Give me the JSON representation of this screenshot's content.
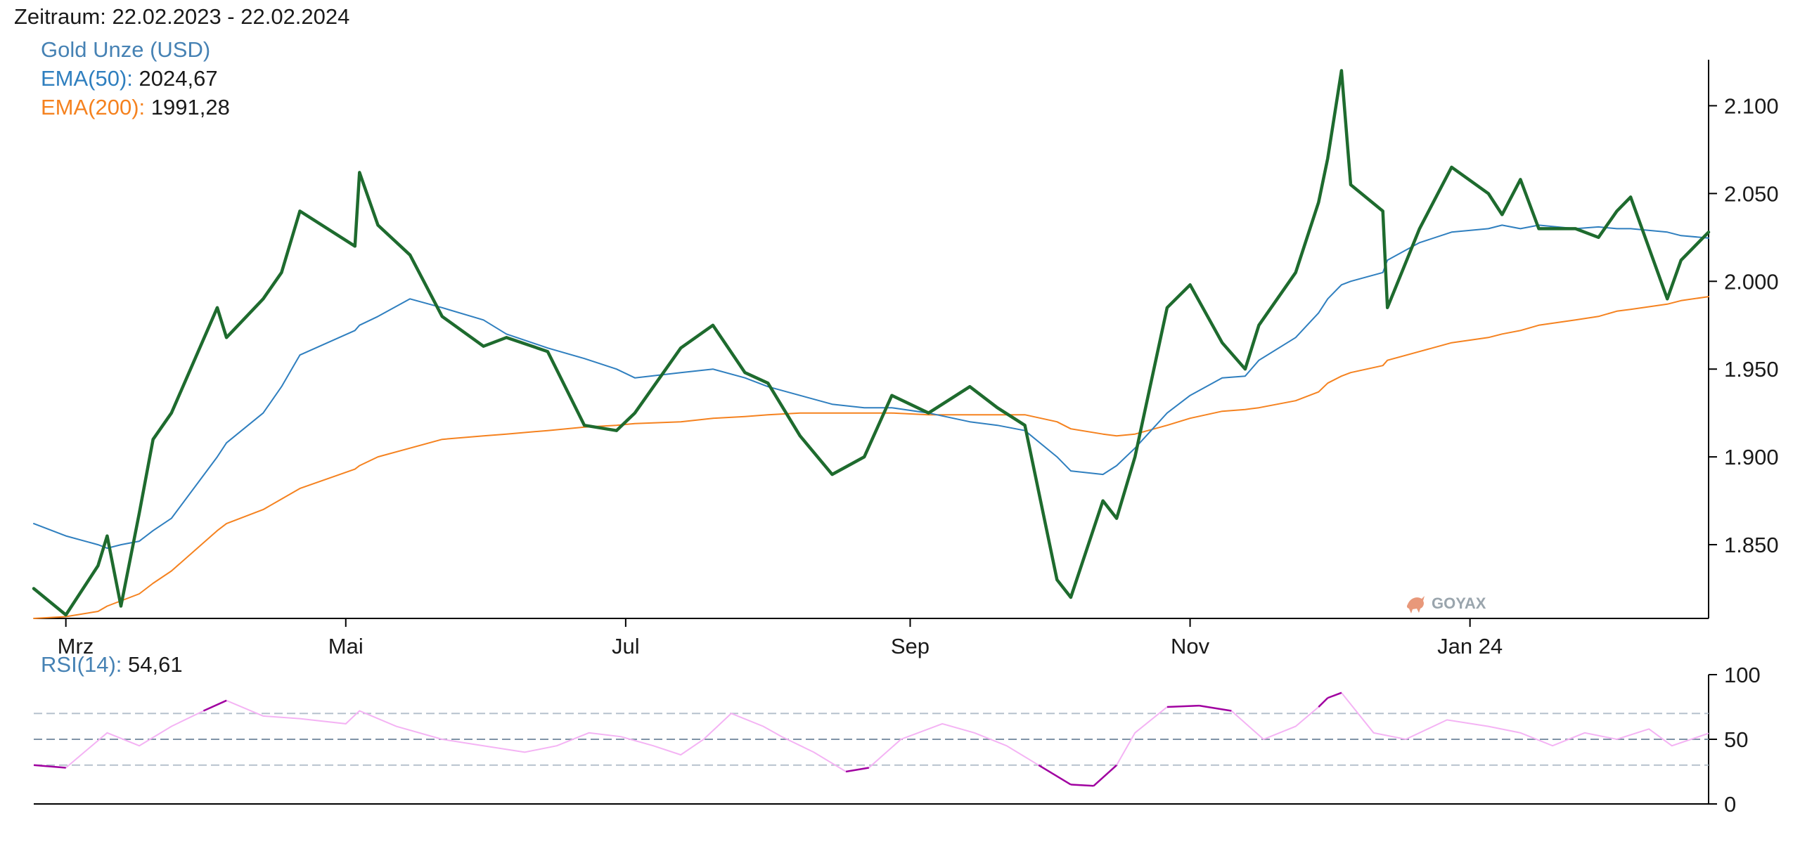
{
  "header": {
    "period_label": "Zeitraum: 22.02.2023 - 22.02.2024"
  },
  "legend": {
    "gold_label": "Gold Unze (USD)",
    "ema50_label": "EMA(50):",
    "ema50_value": "2024,67",
    "ema200_label": "EMA(200):",
    "ema200_value": "1991,28",
    "rsi_label": "RSI(14):",
    "rsi_value": "54,61"
  },
  "watermark": {
    "text": "GOYAX"
  },
  "colors": {
    "price": "#1e6b2e",
    "ema50": "#2f7fbf",
    "ema200": "#f5821f",
    "rsi_light": "#f4b3f4",
    "rsi_dark": "#a000a0",
    "legend_gold": "#4682b4",
    "legend_ema50": "#2f7fbf",
    "legend_ema200": "#f5821f",
    "legend_rsi": "#4682b4"
  },
  "chart_data": [
    {
      "type": "line",
      "title": "",
      "x": [
        "2023-02-22",
        "2023-03-01",
        "2023-03-08",
        "2023-03-10",
        "2023-03-13",
        "2023-03-17",
        "2023-03-20",
        "2023-03-24",
        "2023-04-03",
        "2023-04-05",
        "2023-04-13",
        "2023-04-17",
        "2023-04-21",
        "2023-05-03",
        "2023-05-04",
        "2023-05-08",
        "2023-05-15",
        "2023-05-22",
        "2023-05-31",
        "2023-06-05",
        "2023-06-14",
        "2023-06-22",
        "2023-06-29",
        "2023-07-03",
        "2023-07-13",
        "2023-07-20",
        "2023-07-27",
        "2023-08-01",
        "2023-08-08",
        "2023-08-15",
        "2023-08-22",
        "2023-08-28",
        "2023-09-05",
        "2023-09-14",
        "2023-09-20",
        "2023-09-26",
        "2023-10-03",
        "2023-10-06",
        "2023-10-13",
        "2023-10-16",
        "2023-10-20",
        "2023-10-27",
        "2023-11-01",
        "2023-11-08",
        "2023-11-13",
        "2023-11-16",
        "2023-11-24",
        "2023-11-29",
        "2023-12-01",
        "2023-12-04",
        "2023-12-06",
        "2023-12-13",
        "2023-12-14",
        "2023-12-21",
        "2023-12-28",
        "2024-01-05",
        "2024-01-08",
        "2024-01-12",
        "2024-01-16",
        "2024-01-24",
        "2024-01-29",
        "2024-02-02",
        "2024-02-05",
        "2024-02-13",
        "2024-02-16",
        "2024-02-22"
      ],
      "xticks": [
        "Mrz",
        "Mai",
        "Jul",
        "Sep",
        "Nov",
        "Jan 24"
      ],
      "ylim": [
        1808,
        2125
      ],
      "yticks": [
        "1.850",
        "1.900",
        "1.950",
        "2.000",
        "2.050",
        "2.100"
      ],
      "series": [
        {
          "name": "Gold Unze (USD)",
          "values": [
            1825,
            1810,
            1838,
            1855,
            1815,
            1868,
            1910,
            1925,
            1985,
            1968,
            1990,
            2005,
            2040,
            2020,
            2062,
            2032,
            2015,
            1980,
            1963,
            1968,
            1960,
            1918,
            1915,
            1925,
            1962,
            1975,
            1948,
            1942,
            1912,
            1890,
            1900,
            1935,
            1925,
            1940,
            1928,
            1918,
            1830,
            1820,
            1875,
            1865,
            1900,
            1985,
            1998,
            1965,
            1950,
            1975,
            2005,
            2045,
            2070,
            2120,
            2055,
            2040,
            1985,
            2030,
            2065,
            2050,
            2038,
            2058,
            2030,
            2030,
            2025,
            2040,
            2048,
            1990,
            2012,
            2028
          ]
        },
        {
          "name": "EMA(50)",
          "values": [
            1862,
            1855,
            1850,
            1848,
            1850,
            1852,
            1858,
            1865,
            1900,
            1908,
            1925,
            1940,
            1958,
            1972,
            1975,
            1980,
            1990,
            1985,
            1978,
            1970,
            1962,
            1956,
            1950,
            1945,
            1948,
            1950,
            1945,
            1940,
            1935,
            1930,
            1928,
            1928,
            1925,
            1920,
            1918,
            1915,
            1900,
            1892,
            1890,
            1895,
            1905,
            1925,
            1935,
            1945,
            1946,
            1955,
            1968,
            1982,
            1990,
            1998,
            2000,
            2005,
            2012,
            2022,
            2028,
            2030,
            2032,
            2030,
            2032,
            2030,
            2031,
            2030,
            2030,
            2028,
            2026,
            2024.67
          ]
        },
        {
          "name": "EMA(200)",
          "values": [
            1808,
            1809,
            1812,
            1815,
            1818,
            1822,
            1828,
            1835,
            1858,
            1862,
            1870,
            1876,
            1882,
            1893,
            1895,
            1900,
            1905,
            1910,
            1912,
            1913,
            1915,
            1917,
            1918,
            1919,
            1920,
            1922,
            1923,
            1924,
            1925,
            1925,
            1925,
            1925,
            1924,
            1924,
            1924,
            1924,
            1920,
            1916,
            1913,
            1912,
            1913,
            1918,
            1922,
            1926,
            1927,
            1928,
            1932,
            1937,
            1942,
            1946,
            1948,
            1952,
            1955,
            1960,
            1965,
            1968,
            1970,
            1972,
            1975,
            1978,
            1980,
            1983,
            1984,
            1987,
            1989,
            1991.28
          ]
        }
      ]
    },
    {
      "type": "line",
      "title": "",
      "x": [
        "2023-02-22",
        "2023-03-01",
        "2023-03-10",
        "2023-03-17",
        "2023-03-24",
        "2023-03-31",
        "2023-04-05",
        "2023-04-13",
        "2023-04-21",
        "2023-05-01",
        "2023-05-04",
        "2023-05-12",
        "2023-05-22",
        "2023-05-31",
        "2023-06-09",
        "2023-06-16",
        "2023-06-23",
        "2023-06-30",
        "2023-07-07",
        "2023-07-13",
        "2023-07-18",
        "2023-07-24",
        "2023-07-31",
        "2023-08-04",
        "2023-08-11",
        "2023-08-18",
        "2023-08-23",
        "2023-08-30",
        "2023-09-08",
        "2023-09-15",
        "2023-09-22",
        "2023-09-29",
        "2023-10-06",
        "2023-10-11",
        "2023-10-16",
        "2023-10-20",
        "2023-10-27",
        "2023-11-03",
        "2023-11-10",
        "2023-11-17",
        "2023-11-24",
        "2023-11-29",
        "2023-12-01",
        "2023-12-04",
        "2023-12-11",
        "2023-12-18",
        "2023-12-27",
        "2024-01-05",
        "2024-01-12",
        "2024-01-19",
        "2024-01-26",
        "2024-02-02",
        "2024-02-09",
        "2024-02-14",
        "2024-02-22"
      ],
      "ylim": [
        0,
        100
      ],
      "yticks": [
        "0",
        "50",
        "100"
      ],
      "reference_lines": [
        30,
        50,
        70
      ],
      "series": [
        {
          "name": "RSI(14)",
          "values": [
            30,
            28,
            55,
            45,
            60,
            72,
            80,
            68,
            66,
            62,
            72,
            60,
            50,
            45,
            40,
            45,
            55,
            52,
            45,
            38,
            50,
            70,
            60,
            52,
            40,
            25,
            28,
            50,
            62,
            55,
            45,
            30,
            15,
            14,
            30,
            55,
            75,
            76,
            72,
            50,
            60,
            75,
            82,
            86,
            55,
            50,
            65,
            60,
            55,
            45,
            55,
            50,
            58,
            45,
            54.61
          ]
        }
      ]
    }
  ]
}
